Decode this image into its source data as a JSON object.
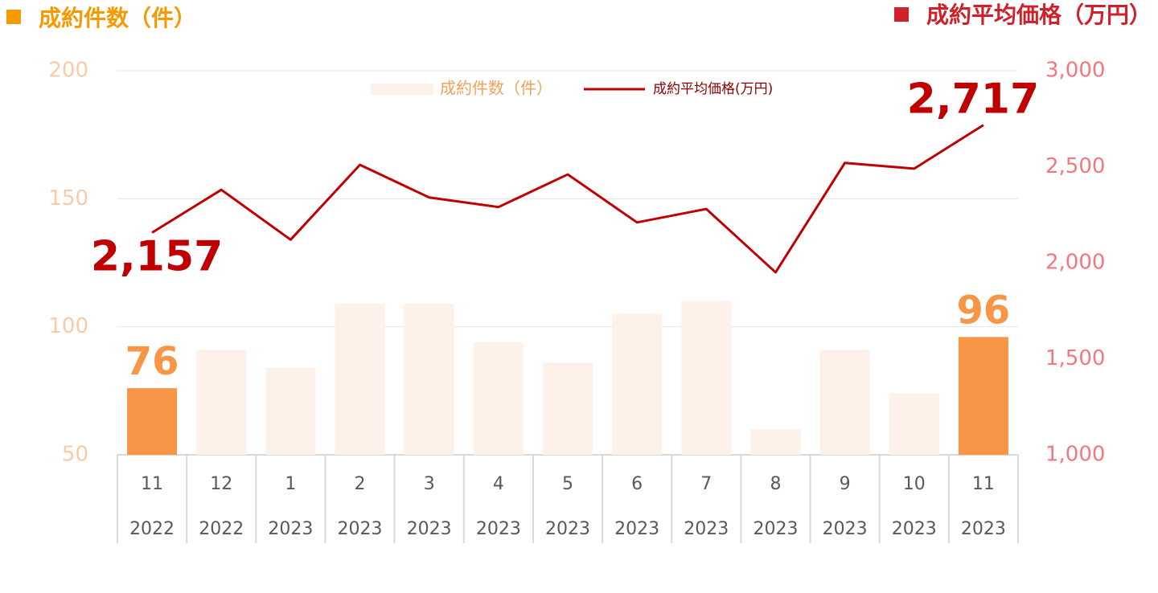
{
  "chart_data": {
    "type": "bar-line",
    "y_label": "成約件数（件）",
    "y2_label": "成約平均価格（万円）",
    "categories": [
      "11",
      "12",
      "1",
      "2",
      "3",
      "4",
      "5",
      "6",
      "7",
      "8",
      "9",
      "10",
      "11"
    ],
    "category_groups": [
      "2022",
      "2022",
      "2023",
      "2023",
      "2023",
      "2023",
      "2023",
      "2023",
      "2023",
      "2023",
      "2023",
      "2023",
      "2023"
    ],
    "series": [
      {
        "name": "成約件数（件）",
        "type": "bar",
        "axis": "y",
        "color": "#fdf1e9",
        "legend_color": "#f4a15a",
        "colors": [
          "#f79646",
          "#fdf1e9",
          "#fdf1e9",
          "#fdf1e9",
          "#fdf1e9",
          "#fdf1e9",
          "#fdf1e9",
          "#fdf1e9",
          "#fdf1e9",
          "#fdf1e9",
          "#fdf1e9",
          "#fdf1e9",
          "#f79646"
        ],
        "values": [
          76,
          91,
          84,
          109,
          109,
          94,
          86,
          105,
          110,
          60,
          91,
          74,
          96
        ],
        "labeled": [
          true,
          false,
          false,
          false,
          false,
          false,
          false,
          false,
          false,
          false,
          false,
          false,
          true
        ]
      },
      {
        "name": "成約平均価格(万円)",
        "type": "line",
        "axis": "y2",
        "color": "#c00000",
        "values": [
          2157,
          2380,
          2120,
          2510,
          2340,
          2290,
          2460,
          2210,
          2280,
          1950,
          2520,
          2490,
          2717
        ],
        "value_labels": [
          "2,157",
          null,
          null,
          null,
          null,
          null,
          null,
          null,
          null,
          null,
          null,
          null,
          "2,717"
        ]
      }
    ],
    "ylim": [
      50,
      200
    ],
    "yticks": [
      50,
      100,
      150,
      200
    ],
    "y2lim": [
      1000,
      3000
    ],
    "y2ticks": [
      {
        "value": 1000,
        "label": "1,000"
      },
      {
        "value": 1500,
        "label": "1,500"
      },
      {
        "value": 2000,
        "label": "2,000"
      },
      {
        "value": 2500,
        "label": "2,500"
      },
      {
        "value": 3000,
        "label": "3,000"
      }
    ],
    "grid": true,
    "legend": "top"
  }
}
